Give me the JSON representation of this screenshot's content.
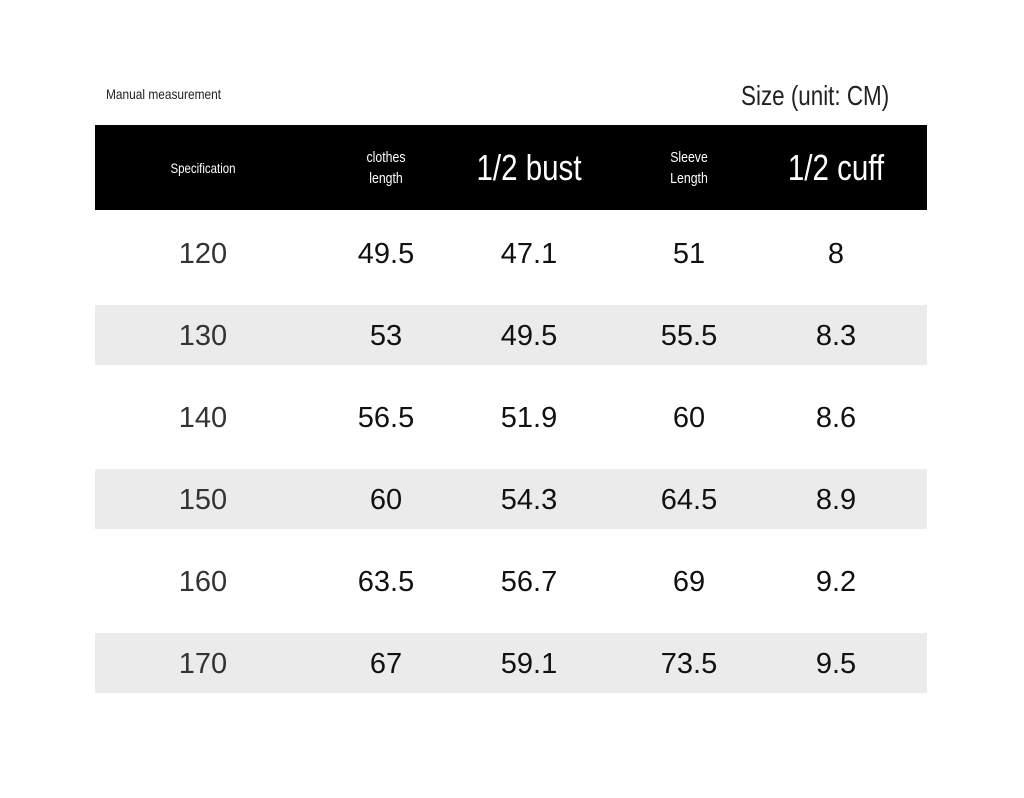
{
  "header": {
    "note": "Manual measurement",
    "title": "Size (unit: CM)"
  },
  "table": {
    "columns": [
      "Specification",
      "clothes length",
      "1/2 bust",
      "Sleeve Length",
      "1/2 cuff"
    ],
    "rows": [
      [
        120,
        49.5,
        47.1,
        51,
        8
      ],
      [
        130,
        53,
        49.5,
        55.5,
        8.3
      ],
      [
        140,
        56.5,
        51.9,
        60,
        8.6
      ],
      [
        150,
        60,
        54.3,
        64.5,
        8.9
      ],
      [
        160,
        63.5,
        56.7,
        69,
        9.2
      ],
      [
        170,
        67,
        59.1,
        73.5,
        9.5
      ]
    ]
  }
}
